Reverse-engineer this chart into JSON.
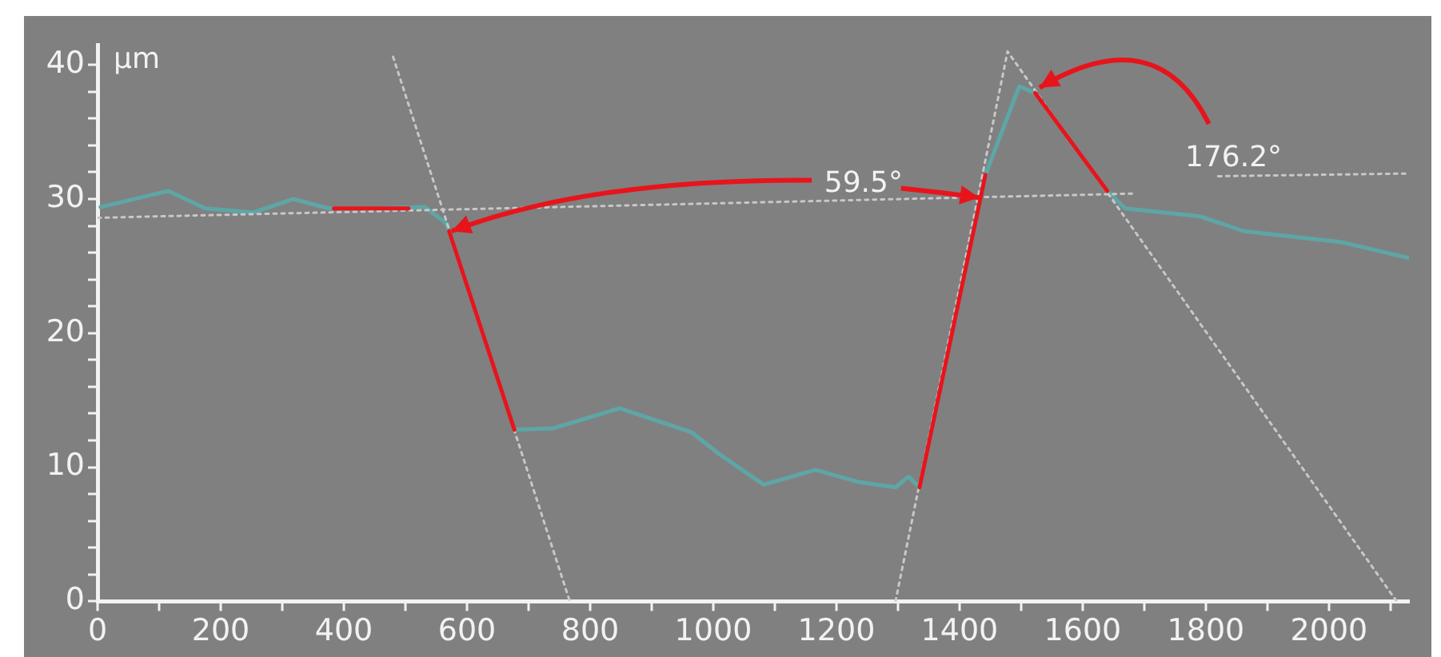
{
  "chart_data": {
    "type": "line",
    "ylabel": "µm",
    "grid": false,
    "legend": false,
    "marker": "none",
    "xlim": [
      0,
      2130
    ],
    "ylim": [
      0,
      41.5
    ],
    "xticks": [
      0,
      {
        "value": 100,
        "label": null
      },
      200,
      {
        "value": 300,
        "label": null
      },
      400,
      {
        "value": 500,
        "label": null
      },
      600,
      {
        "value": 700,
        "label": null
      },
      800,
      {
        "value": 900,
        "label": null
      },
      1000,
      {
        "value": 1100,
        "label": null
      },
      1200,
      {
        "value": 1300,
        "label": null
      },
      1400,
      {
        "value": 1500,
        "label": null
      },
      1600,
      {
        "value": 1700,
        "label": null
      },
      1800,
      {
        "value": 1900,
        "label": null
      },
      2000,
      {
        "value": 2100,
        "label": null
      }
    ],
    "yticks": [
      0,
      {
        "value": 2,
        "label": null
      },
      {
        "value": 4,
        "label": null
      },
      {
        "value": 6,
        "label": null
      },
      {
        "value": 8,
        "label": null
      },
      10,
      {
        "value": 12,
        "label": null
      },
      {
        "value": 14,
        "label": null
      },
      {
        "value": 16,
        "label": null
      },
      {
        "value": 18,
        "label": null
      },
      20,
      {
        "value": 22,
        "label": null
      },
      {
        "value": 24,
        "label": null
      },
      {
        "value": 26,
        "label": null
      },
      {
        "value": 28,
        "label": null
      },
      30,
      {
        "value": 32,
        "label": null
      },
      {
        "value": 34,
        "label": null
      },
      {
        "value": 36,
        "label": null
      },
      {
        "value": 38,
        "label": null
      },
      40
    ],
    "series": [
      {
        "color": "#5ea6a6",
        "line_style": "solid",
        "x": [
          5,
          115,
          175,
          253,
          318,
          375,
          450,
          532,
          566,
          571,
          677,
          740,
          848,
          965,
          1009,
          1082,
          1166,
          1236,
          1296,
          1317,
          1335,
          1442,
          1497,
          1523,
          1640,
          1669,
          1791,
          1862,
          2018,
          2130
        ],
        "values": [
          29.4,
          30.6,
          29.3,
          29.0,
          30.0,
          29.3,
          29.3,
          29.4,
          28.2,
          27.6,
          12.8,
          12.9,
          14.4,
          12.6,
          11.0,
          8.7,
          9.8,
          8.9,
          8.5,
          9.3,
          8.5,
          31.8,
          38.4,
          37.9,
          30.6,
          29.3,
          28.7,
          27.6,
          26.8,
          25.6
        ]
      },
      {
        "color": "#c8c8c8",
        "line_style": "dotted",
        "x": [
          0,
          1680
        ],
        "values": [
          28.6,
          30.4
        ]
      },
      {
        "color": "#c8c8c8",
        "line_style": "dotted",
        "x": [
          1820,
          2130
        ],
        "values": [
          31.7,
          31.9
        ]
      },
      {
        "color": "#c8c8c8",
        "line_style": "dotted",
        "x": [
          480,
          767
        ],
        "values": [
          40.6,
          0
        ]
      },
      {
        "color": "#c8c8c8",
        "line_style": "dotted",
        "x": [
          1296,
          1478,
          2110
        ],
        "values": [
          0,
          41,
          0
        ]
      },
      {
        "color": "#e8141c",
        "line_style": "solid",
        "x": [
          384,
          505
        ],
        "values": [
          29.3,
          29.3
        ]
      },
      {
        "color": "#e8141c",
        "line_style": "solid",
        "x": [
          571,
          677
        ],
        "values": [
          27.6,
          12.8
        ]
      },
      {
        "color": "#e8141c",
        "line_style": "solid",
        "x": [
          1335,
          1442
        ],
        "values": [
          8.5,
          31.8
        ]
      },
      {
        "color": "#e8141c",
        "line_style": "solid",
        "x": [
          1523,
          1640
        ],
        "values": [
          37.9,
          30.6
        ]
      }
    ],
    "annotations": [
      {
        "text": "59.5°",
        "x": 571,
        "y": 27.6
      },
      {
        "text": "176.2°",
        "x": 1523,
        "y": 37.9
      }
    ]
  }
}
